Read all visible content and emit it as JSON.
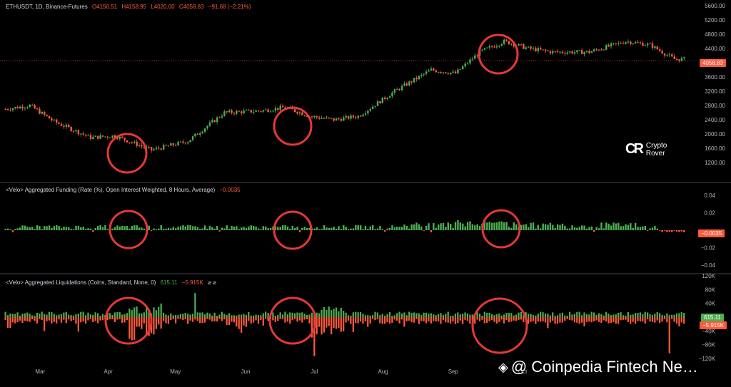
{
  "header": {
    "symbol": "ETHUSDT, 1D, Binance-Futures",
    "open": "O4150.51",
    "high": "H4158.95",
    "low": "L4020.00",
    "close": "C4058.83",
    "change": "−91.68 (−2.21%)"
  },
  "funding_legend": {
    "title": "<Velo> Aggregated Funding (Rate (%), Open Interest Weighted, 8 Hours, Average)",
    "value": "−0.0035"
  },
  "liq_legend": {
    "title": "<Velo> Aggregated Liquidations (Coins, Standard, None, 0)",
    "long_value": "615.11",
    "short_value": "−5.915K",
    "icons": "⌀ ⌀"
  },
  "badges": {
    "price": "4058.83",
    "funding": "−0.0035",
    "liq_long": "615.11",
    "liq_short": "−5.915K"
  },
  "brand": {
    "line1": "Crypto",
    "line2": "Rover",
    "logo_icon": "cr-logo-icon"
  },
  "watermark": {
    "text": "@ Coinpedia Fintech Ne…",
    "icon": "binance-diamond-icon"
  },
  "colors": {
    "up": "#4caf50",
    "down": "#ff5a3c",
    "highlight_circle": "#e53935",
    "price_line": "#ff5a3c"
  },
  "chart_data": [
    {
      "type": "candlestick",
      "series_name": "ETHUSDT, 1D, Binance-Futures",
      "months": [
        "Mar",
        "Apr",
        "May",
        "Jun",
        "Jul",
        "Aug",
        "Sep",
        "Oct"
      ],
      "ylim": [
        1000,
        5600
      ],
      "yticks": [
        5600,
        5200,
        4800,
        4400,
        4000,
        3600,
        3200,
        2800,
        2400,
        2000,
        1600,
        1200
      ],
      "last_price": 4058.83,
      "trend_points": [
        [
          0,
          2700
        ],
        [
          10,
          2800
        ],
        [
          20,
          2350
        ],
        [
          35,
          1900
        ],
        [
          45,
          1950
        ],
        [
          60,
          1550
        ],
        [
          75,
          1800
        ],
        [
          90,
          2600
        ],
        [
          105,
          2650
        ],
        [
          115,
          2750
        ],
        [
          125,
          2500
        ],
        [
          135,
          2400
        ],
        [
          145,
          2500
        ],
        [
          160,
          3200
        ],
        [
          175,
          3800
        ],
        [
          185,
          3700
        ],
        [
          195,
          4300
        ],
        [
          205,
          4600
        ],
        [
          215,
          4400
        ],
        [
          225,
          4300
        ],
        [
          240,
          4300
        ],
        [
          255,
          4600
        ],
        [
          265,
          4500
        ],
        [
          275,
          4100
        ]
      ],
      "highlighted_days": [
        58,
        132,
        272
      ]
    },
    {
      "type": "bar",
      "series_name": "<Velo> Aggregated Funding (Rate (%), Open Interest Weighted, 8 Hours, Average)",
      "ylim": [
        -0.045,
        0.045
      ],
      "yticks": [
        0.04,
        0.02,
        -0.02,
        -0.04
      ],
      "last_value": -0.0035,
      "highlighted_days": [
        58,
        132,
        272
      ]
    },
    {
      "type": "bar",
      "series_name": "<Velo> Aggregated Liquidations (Coins, Standard, None, 0)",
      "ylim": [
        -120000,
        120000
      ],
      "yticks": [
        "120K",
        "80K",
        "40K",
        "-40K",
        "-80K",
        "-120K"
      ],
      "last_long": 615.11,
      "last_short": -5915,
      "highlighted_days": [
        58,
        132,
        272
      ]
    }
  ]
}
